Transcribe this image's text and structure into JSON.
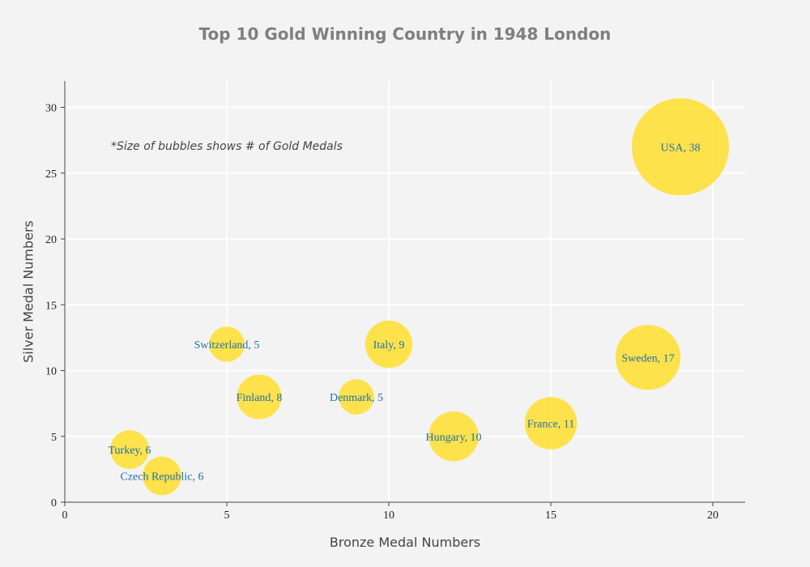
{
  "chart_data": {
    "type": "scatter",
    "title": "Top 10 Gold Winning Country in 1948 London",
    "xlabel": "Bronze Medal Numbers",
    "ylabel": "Silver Medal Numbers",
    "xlim": [
      0,
      21
    ],
    "ylim": [
      0,
      32
    ],
    "x_ticks": [
      0,
      5,
      10,
      15,
      20
    ],
    "y_ticks": [
      0,
      5,
      10,
      15,
      20,
      25,
      30
    ],
    "grid": true,
    "bubble_size_variable": "gold",
    "annotation": "*Size of bubbles shows # of Gold Medals",
    "points": [
      {
        "country": "USA",
        "bronze": 19,
        "silver": 27,
        "gold": 38,
        "label": "USA, 38"
      },
      {
        "country": "Sweden",
        "bronze": 18,
        "silver": 11,
        "gold": 17,
        "label": "Sweden, 17"
      },
      {
        "country": "France",
        "bronze": 15,
        "silver": 6,
        "gold": 11,
        "label": "France, 11"
      },
      {
        "country": "Hungary",
        "bronze": 12,
        "silver": 5,
        "gold": 10,
        "label": "Hungary, 10"
      },
      {
        "country": "Italy",
        "bronze": 10,
        "silver": 12,
        "gold": 9,
        "label": "Italy, 9"
      },
      {
        "country": "Denmark",
        "bronze": 9,
        "silver": 8,
        "gold": 5,
        "label": "Denmark, 5"
      },
      {
        "country": "Finland",
        "bronze": 6,
        "silver": 8,
        "gold": 8,
        "label": "Finland, 8"
      },
      {
        "country": "Switzerland",
        "bronze": 5,
        "silver": 12,
        "gold": 5,
        "label": "Switzerland, 5"
      },
      {
        "country": "Turkey",
        "bronze": 2,
        "silver": 4,
        "gold": 6,
        "label": "Turkey, 6"
      },
      {
        "country": "Czech Republic",
        "bronze": 3,
        "silver": 2,
        "gold": 6,
        "label": "Czech Republic, 6"
      }
    ],
    "colors": {
      "bubble": "#FFDD22",
      "label_text": "#1f6fa8",
      "background": "#f3f3f3",
      "grid": "#ffffff",
      "axis": "#444444"
    }
  }
}
